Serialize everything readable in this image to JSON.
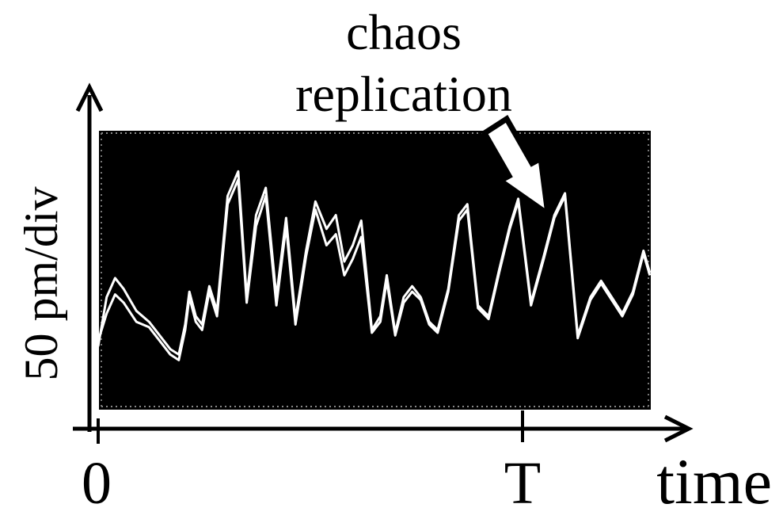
{
  "chart_data": {
    "type": "line",
    "title": "",
    "xlabel": "time",
    "ylabel": "50 pm/div",
    "x_ticks": [
      {
        "value": 0,
        "label": "0"
      },
      {
        "value": 1,
        "label": "T"
      }
    ],
    "xlim": [
      0,
      1.3
    ],
    "ylim": [
      0,
      1
    ],
    "annotation": {
      "text_lines": [
        "chaos",
        "replication"
      ]
    },
    "colors": {
      "background": "#000000",
      "trace": "#ffffff",
      "axes": "#000000"
    },
    "series": [
      {
        "x": [
          0.0,
          0.02,
          0.04,
          0.06,
          0.09,
          0.12,
          0.15,
          0.17,
          0.19,
          0.205,
          0.215,
          0.23,
          0.245,
          0.262,
          0.28,
          0.305,
          0.33,
          0.35,
          0.372,
          0.395,
          0.42,
          0.443,
          0.465,
          0.49,
          0.512,
          0.538,
          0.56,
          0.58,
          0.6,
          0.62,
          0.645,
          0.665,
          0.68,
          0.7,
          0.72,
          0.74,
          0.76,
          0.78,
          0.8,
          0.825,
          0.85,
          0.87,
          0.895,
          0.92,
          0.945,
          0.97,
          0.99,
          1.02,
          1.05,
          1.075,
          1.1,
          1.13,
          1.16,
          1.185,
          1.21,
          1.235,
          1.26,
          1.285,
          1.3
        ],
        "values": [
          0.22,
          0.4,
          0.47,
          0.43,
          0.35,
          0.31,
          0.25,
          0.21,
          0.19,
          0.3,
          0.42,
          0.33,
          0.3,
          0.44,
          0.35,
          0.77,
          0.86,
          0.4,
          0.7,
          0.8,
          0.4,
          0.69,
          0.32,
          0.57,
          0.75,
          0.65,
          0.7,
          0.53,
          0.59,
          0.68,
          0.28,
          0.33,
          0.48,
          0.27,
          0.4,
          0.44,
          0.4,
          0.31,
          0.28,
          0.43,
          0.7,
          0.74,
          0.37,
          0.33,
          0.5,
          0.66,
          0.76,
          0.38,
          0.55,
          0.7,
          0.78,
          0.26,
          0.4,
          0.46,
          0.4,
          0.34,
          0.42,
          0.57,
          0.49
        ]
      },
      {
        "x": [
          0.0,
          0.02,
          0.04,
          0.06,
          0.09,
          0.12,
          0.15,
          0.17,
          0.19,
          0.205,
          0.215,
          0.23,
          0.245,
          0.262,
          0.28,
          0.305,
          0.33,
          0.35,
          0.372,
          0.395,
          0.42,
          0.443,
          0.465,
          0.49,
          0.512,
          0.538,
          0.56,
          0.58,
          0.6,
          0.62,
          0.645,
          0.665,
          0.68,
          0.7,
          0.72,
          0.74,
          0.76,
          0.78,
          0.8,
          0.825,
          0.85,
          0.87,
          0.895,
          0.92,
          0.945,
          0.97,
          0.99,
          1.02,
          1.05,
          1.075,
          1.1,
          1.13,
          1.16,
          1.185,
          1.21,
          1.235,
          1.26,
          1.285,
          1.3
        ],
        "values": [
          0.24,
          0.34,
          0.41,
          0.38,
          0.31,
          0.29,
          0.23,
          0.19,
          0.17,
          0.28,
          0.4,
          0.31,
          0.28,
          0.42,
          0.33,
          0.74,
          0.83,
          0.38,
          0.66,
          0.77,
          0.37,
          0.66,
          0.3,
          0.55,
          0.72,
          0.59,
          0.63,
          0.48,
          0.54,
          0.62,
          0.27,
          0.31,
          0.46,
          0.26,
          0.38,
          0.42,
          0.39,
          0.3,
          0.27,
          0.42,
          0.68,
          0.72,
          0.36,
          0.32,
          0.49,
          0.65,
          0.75,
          0.37,
          0.54,
          0.69,
          0.77,
          0.25,
          0.39,
          0.45,
          0.39,
          0.33,
          0.41,
          0.56,
          0.48
        ]
      }
    ]
  }
}
